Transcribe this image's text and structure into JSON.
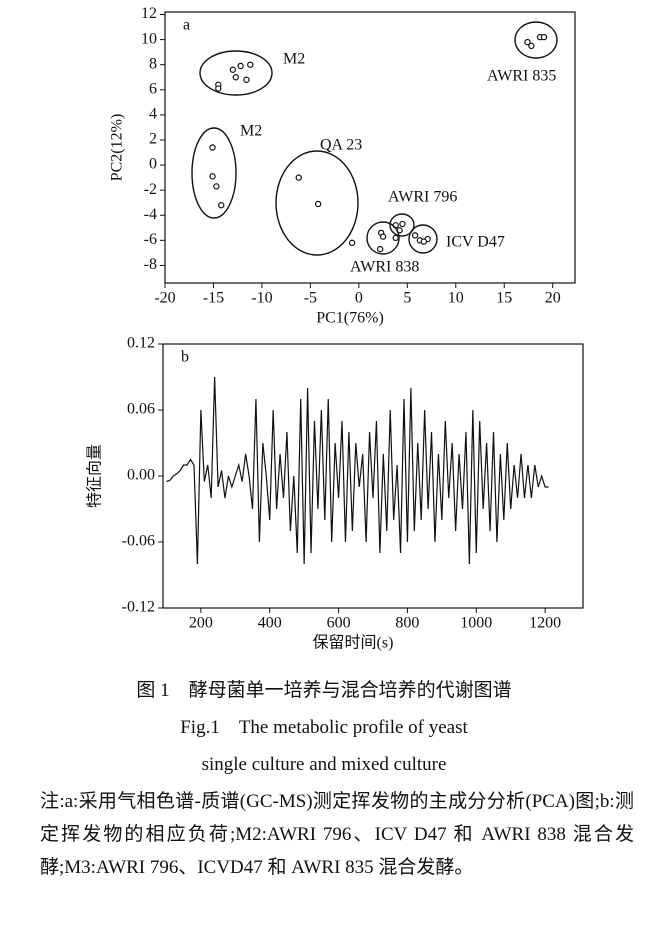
{
  "chart_data": [
    {
      "type": "scatter",
      "label": "a",
      "xlabel": "PC1(76%)",
      "ylabel": "PC2(12%)",
      "xlim": [
        -20,
        22.3
      ],
      "ylim": [
        -9.4,
        12.2
      ],
      "xticks": [
        -20,
        -15,
        -10,
        -5,
        0,
        5,
        10,
        15,
        20
      ],
      "yticks": [
        -8,
        -6,
        -4,
        -2,
        0,
        2,
        4,
        6,
        8,
        10,
        12
      ],
      "groups": [
        {
          "label": "M2",
          "x": [
            -14.5,
            -14.5,
            -13.0,
            -12.2,
            -12.7,
            -11.6,
            -11.2
          ],
          "y": [
            6.4,
            6.1,
            7.6,
            7.9,
            7.0,
            6.8,
            8.0
          ]
        },
        {
          "label": "M2",
          "x": [
            -15.1,
            -15.1,
            -14.7,
            -14.2
          ],
          "y": [
            1.4,
            -0.9,
            -1.7,
            -3.2
          ]
        },
        {
          "label": "QA 23",
          "x": [
            -6.2,
            -4.2,
            -0.7
          ],
          "y": [
            -1.0,
            -3.1,
            -6.2
          ]
        },
        {
          "label": "AWRI 796",
          "x": [
            3.8,
            4.2,
            4.5
          ],
          "y": [
            -4.8,
            -5.2,
            -4.7
          ]
        },
        {
          "label": "ICV D47",
          "x": [
            5.8,
            6.3,
            7.1,
            6.7
          ],
          "y": [
            -5.6,
            -6.0,
            -5.9,
            -6.1
          ]
        },
        {
          "label": "AWRI 838",
          "x": [
            2.3,
            2.5,
            2.2,
            3.8
          ],
          "y": [
            -5.4,
            -5.7,
            -6.7,
            -5.8
          ]
        },
        {
          "label": "AWRI 835",
          "x": [
            17.8,
            18.7,
            19.1,
            17.4
          ],
          "y": [
            9.5,
            10.2,
            10.2,
            9.8
          ]
        }
      ]
    },
    {
      "type": "line",
      "label": "b",
      "xlabel": "保留时间(s)",
      "ylabel": "特征向量",
      "color": "#111111",
      "xlim": [
        90,
        1310
      ],
      "ylim": [
        -0.12,
        0.12
      ],
      "xticks": [
        200,
        400,
        600,
        800,
        1000,
        1200
      ],
      "yticks": [
        -0.12,
        -0.06,
        {
          "value": 0,
          "label": "0.00"
        },
        0.06,
        0.12
      ],
      "x": [
        100,
        110,
        120,
        130,
        140,
        150,
        160,
        170,
        180,
        190,
        200,
        210,
        220,
        230,
        240,
        250,
        260,
        270,
        280,
        290,
        300,
        310,
        320,
        330,
        340,
        350,
        360,
        370,
        380,
        390,
        400,
        410,
        420,
        430,
        440,
        450,
        460,
        470,
        480,
        490,
        500,
        510,
        520,
        530,
        540,
        550,
        560,
        570,
        580,
        590,
        600,
        610,
        620,
        630,
        640,
        650,
        660,
        670,
        680,
        690,
        700,
        710,
        720,
        730,
        740,
        750,
        760,
        770,
        780,
        790,
        800,
        810,
        820,
        830,
        840,
        850,
        860,
        870,
        880,
        890,
        900,
        910,
        920,
        930,
        940,
        950,
        960,
        970,
        980,
        990,
        1000,
        1010,
        1020,
        1030,
        1040,
        1050,
        1060,
        1070,
        1080,
        1090,
        1100,
        1110,
        1120,
        1130,
        1140,
        1150,
        1160,
        1170,
        1180,
        1190,
        1200,
        1210
      ],
      "values": [
        -0.005,
        -0.004,
        0.0,
        0.002,
        0.005,
        0.01,
        0.01,
        0.015,
        0.01,
        -0.08,
        0.06,
        -0.005,
        0.01,
        -0.02,
        0.09,
        -0.01,
        0.005,
        -0.02,
        0.0,
        -0.01,
        0.0,
        0.01,
        -0.005,
        0.02,
        0.0,
        -0.03,
        0.07,
        -0.06,
        0.03,
        0.0,
        -0.04,
        0.06,
        -0.03,
        0.02,
        -0.02,
        0.04,
        -0.05,
        0.0,
        -0.07,
        0.07,
        -0.08,
        0.08,
        -0.07,
        0.05,
        -0.03,
        0.06,
        -0.04,
        0.07,
        -0.06,
        0.03,
        -0.02,
        0.05,
        -0.06,
        0.04,
        -0.05,
        0.03,
        -0.01,
        0.02,
        -0.06,
        0.04,
        -0.02,
        0.05,
        -0.07,
        0.02,
        -0.05,
        0.06,
        -0.04,
        0.01,
        -0.07,
        0.07,
        -0.06,
        0.08,
        -0.05,
        0.03,
        -0.04,
        0.06,
        -0.03,
        0.04,
        -0.06,
        0.02,
        -0.04,
        0.05,
        -0.02,
        0.03,
        -0.05,
        0.02,
        -0.03,
        0.04,
        -0.08,
        0.06,
        -0.07,
        0.05,
        -0.03,
        0.03,
        -0.05,
        0.04,
        -0.06,
        0.02,
        -0.04,
        0.03,
        -0.03,
        0.01,
        -0.02,
        0.02,
        -0.02,
        0.01,
        -0.02,
        0.01,
        -0.01,
        0.0,
        -0.01,
        -0.01
      ]
    }
  ],
  "caption": {
    "cn": "图 1　酵母菌单一培养与混合培养的代谢图谱",
    "en1": "Fig.1　The metabolic profile of yeast",
    "en2": "single culture and mixed culture",
    "note": "注:a:采用气相色谱-质谱(GC-MS)测定挥发物的主成分分析(PCA)图;b:测定挥发物的相应负荷;M2:AWRI 796、ICV D47 和 AWRI 838 混合发酵;M3:AWRI 796、ICVD47 和 AWRI 835 混合发酵。"
  }
}
